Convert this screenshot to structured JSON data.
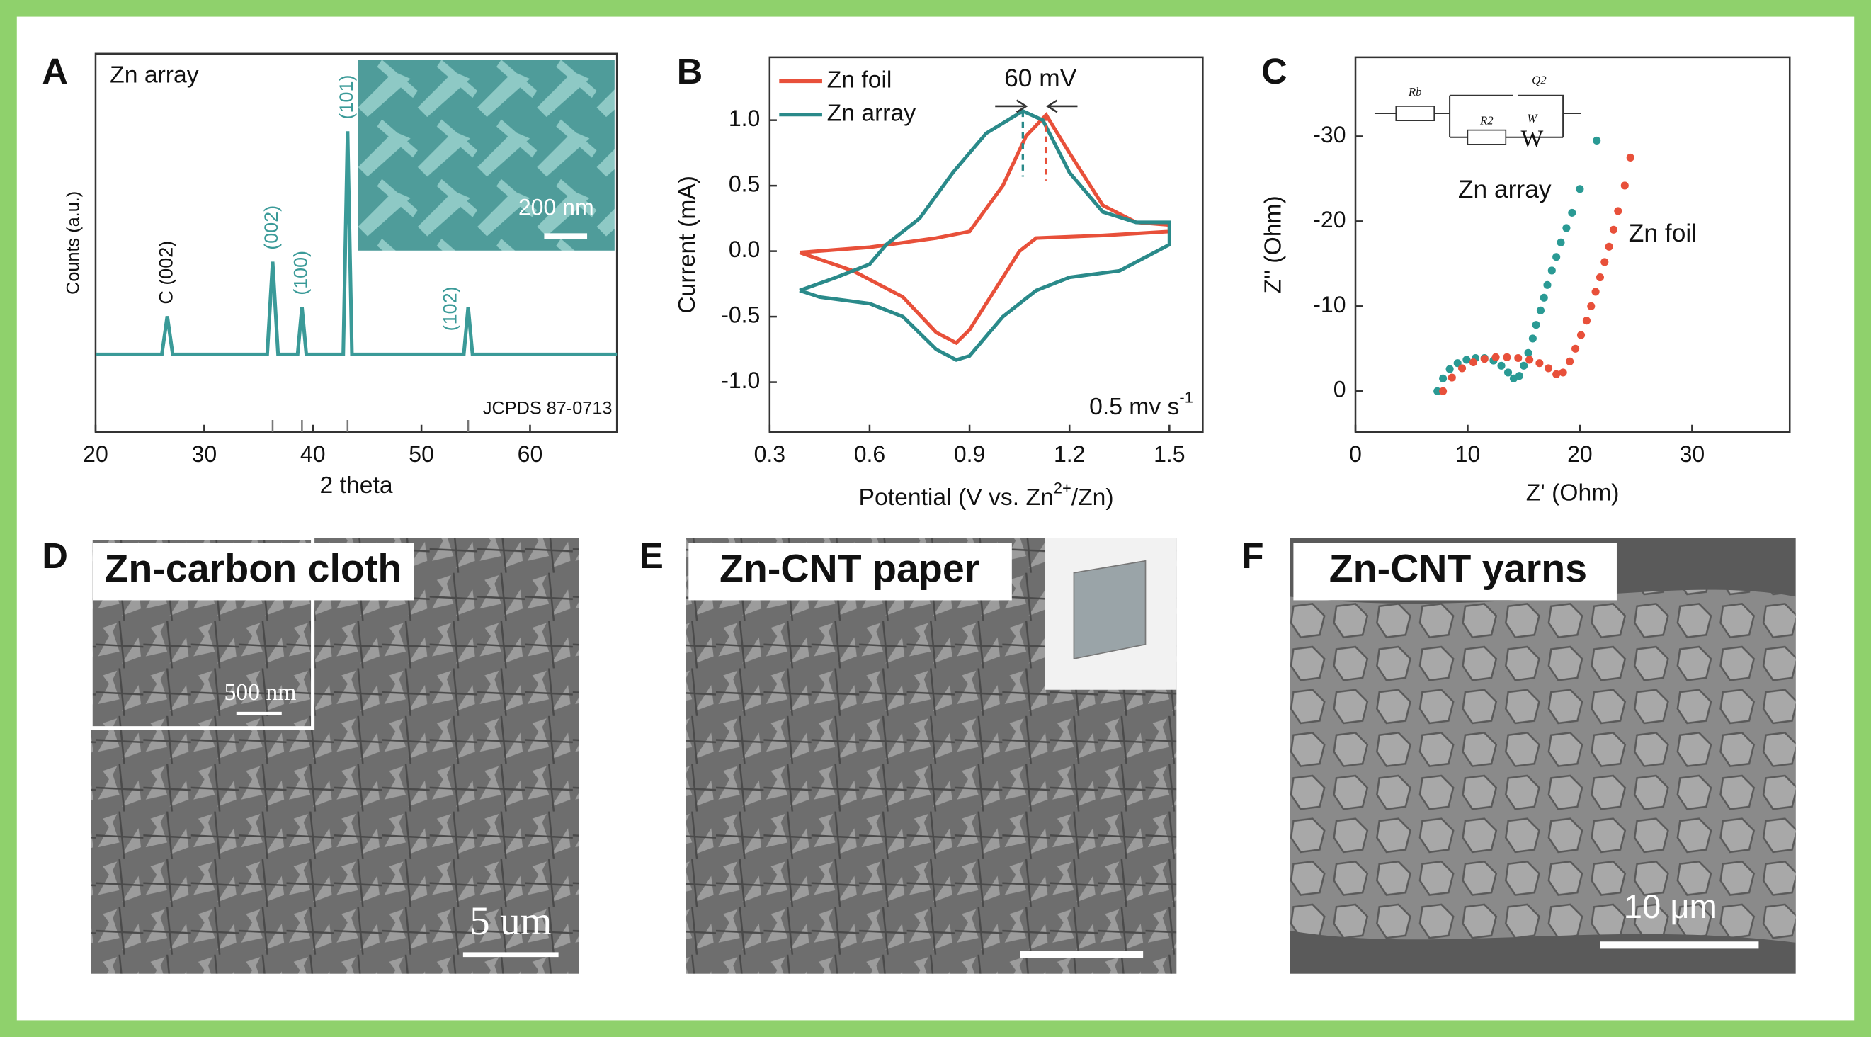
{
  "chart_data": [
    {
      "type": "line",
      "panel": "A",
      "ylabel": "Counts (a.u.)",
      "xlabel": "2 theta",
      "xlim": [
        20,
        68
      ],
      "xticks": [
        20,
        30,
        40,
        50,
        60
      ],
      "ylim": [
        0,
        100
      ],
      "series": [
        {
          "name": "Zn array",
          "color": "#3a9a98",
          "x": [
            20,
            26.1,
            26.6,
            27.1,
            35.8,
            36.3,
            36.8,
            38.6,
            39.0,
            39.4,
            42.8,
            43.2,
            43.6,
            53.9,
            54.3,
            54.7,
            68
          ],
          "values": [
            20.5,
            20.5,
            30.6,
            20.5,
            20.5,
            45,
            20.5,
            20.5,
            33,
            20.5,
            20.5,
            79.5,
            20.5,
            20.5,
            33,
            20.5,
            20.5
          ]
        }
      ],
      "peaks": [
        {
          "label": "C (002)",
          "x": 26.6,
          "color": "#111"
        },
        {
          "label": "(002)",
          "x": 36.3,
          "color": "#3a9a98"
        },
        {
          "label": "(100)",
          "x": 39.0,
          "color": "#3a9a98"
        },
        {
          "label": "(101)",
          "x": 43.2,
          "color": "#3a9a98"
        },
        {
          "label": "(102)",
          "x": 54.3,
          "color": "#3a9a98"
        }
      ],
      "reference_x": [
        36.3,
        39.0,
        43.2,
        54.3
      ],
      "reference_label": "JCPDS 87-0713",
      "inset_scale": "200 nm"
    },
    {
      "type": "line",
      "panel": "B",
      "ylabel": "Current (mA)",
      "xlabel": [
        "Potential (V vs. Zn",
        "2+",
        "/Zn)"
      ],
      "xlim": [
        0.3,
        1.6
      ],
      "xticks": [
        0.3,
        0.6,
        0.9,
        1.2,
        1.5
      ],
      "ylim": [
        -1.38,
        1.48
      ],
      "yticks": [
        {
          "value": -1,
          "label": "-1.0"
        },
        -0.5,
        {
          "value": 0,
          "label": "0.0"
        },
        0.5,
        {
          "value": 1,
          "label": "1.0"
        }
      ],
      "legend": "upper left",
      "annotation": "60 mV",
      "rate": [
        "0.5 mv s",
        "-1"
      ],
      "series": [
        {
          "name": "Zn foil",
          "color": "#e8503a",
          "x": [
            0.39,
            0.6,
            0.8,
            0.9,
            1.0,
            1.07,
            1.13,
            1.2,
            1.3,
            1.4,
            1.5,
            1.5,
            1.3,
            1.1,
            1.05,
            1.0,
            0.9,
            0.86,
            0.8,
            0.7,
            0.55,
            0.39
          ],
          "values": [
            -0.01,
            0.03,
            0.1,
            0.15,
            0.5,
            0.88,
            1.04,
            0.75,
            0.35,
            0.22,
            0.2,
            0.15,
            0.12,
            0.1,
            0.0,
            -0.2,
            -0.6,
            -0.7,
            -0.62,
            -0.35,
            -0.15,
            -0.01
          ]
        },
        {
          "name": "Zn array",
          "color": "#2a8a8a",
          "x": [
            0.39,
            0.5,
            0.6,
            0.65,
            0.75,
            0.85,
            0.95,
            1.06,
            1.12,
            1.2,
            1.3,
            1.4,
            1.5,
            1.5,
            1.35,
            1.2,
            1.1,
            1.0,
            0.9,
            0.86,
            0.8,
            0.7,
            0.6,
            0.45,
            0.39
          ],
          "values": [
            -0.3,
            -0.2,
            -0.1,
            0.05,
            0.25,
            0.6,
            0.9,
            1.07,
            1.0,
            0.6,
            0.3,
            0.22,
            0.22,
            0.05,
            -0.15,
            -0.2,
            -0.3,
            -0.5,
            -0.8,
            -0.83,
            -0.75,
            -0.5,
            -0.4,
            -0.35,
            -0.3
          ]
        }
      ]
    },
    {
      "type": "scatter",
      "panel": "C",
      "ylabel": "Z'' (Ohm)",
      "xlabel": "Z' (Ohm)",
      "xlim": [
        0,
        38.7
      ],
      "xticks": [
        0,
        10,
        20,
        30
      ],
      "ylim": [
        4.8,
        -39.3
      ],
      "yticks": [
        0,
        -10,
        -20,
        -30
      ],
      "circuit_labels": [
        "Rb",
        "Q2",
        "R2",
        "W",
        "W"
      ],
      "series": [
        {
          "name": "Zn array",
          "color": "#2a9a94",
          "x": [
            7.3,
            7.8,
            8.4,
            9.1,
            9.9,
            10.7,
            11.5,
            12.3,
            13.0,
            13.6,
            14.1,
            14.6,
            15.0,
            15.4,
            15.8,
            16.1,
            16.5,
            16.8,
            17.1,
            17.5,
            17.9,
            18.3,
            18.8,
            19.3,
            20.0,
            21.5
          ],
          "values": [
            0,
            -1.5,
            -2.6,
            -3.3,
            -3.7,
            -3.9,
            -3.9,
            -3.6,
            -3.0,
            -2.2,
            -1.5,
            -1.8,
            -3,
            -4.5,
            -6.2,
            -7.8,
            -9.5,
            -11,
            -12.5,
            -14.2,
            -15.8,
            -17.5,
            -19.2,
            -21,
            -23.8,
            -29.5
          ]
        },
        {
          "name": "Zn foil",
          "color": "#e8503a",
          "x": [
            7.8,
            8.6,
            9.5,
            10.5,
            11.5,
            12.5,
            13.5,
            14.5,
            15.5,
            16.4,
            17.2,
            17.9,
            18.5,
            19.1,
            19.6,
            20.1,
            20.6,
            21.0,
            21.4,
            21.8,
            22.2,
            22.6,
            23.0,
            23.4,
            24.0,
            24.5
          ],
          "values": [
            0,
            -1.6,
            -2.7,
            -3.4,
            -3.8,
            -4.0,
            -4.0,
            -3.9,
            -3.7,
            -3.3,
            -2.7,
            -2.0,
            -2.2,
            -3.5,
            -5,
            -6.6,
            -8.3,
            -10,
            -11.7,
            -13.4,
            -15.2,
            -17,
            -19,
            -21.2,
            -24.2,
            -27.5
          ]
        }
      ]
    }
  ],
  "images": [
    {
      "panel": "D",
      "label": "Zn-carbon cloth",
      "inset_scale": "500 nm",
      "scale": "5 um"
    },
    {
      "panel": "E",
      "label": "Zn-CNT paper"
    },
    {
      "panel": "F",
      "label": "Zn-CNT yarns",
      "scale": "10 μm"
    }
  ]
}
